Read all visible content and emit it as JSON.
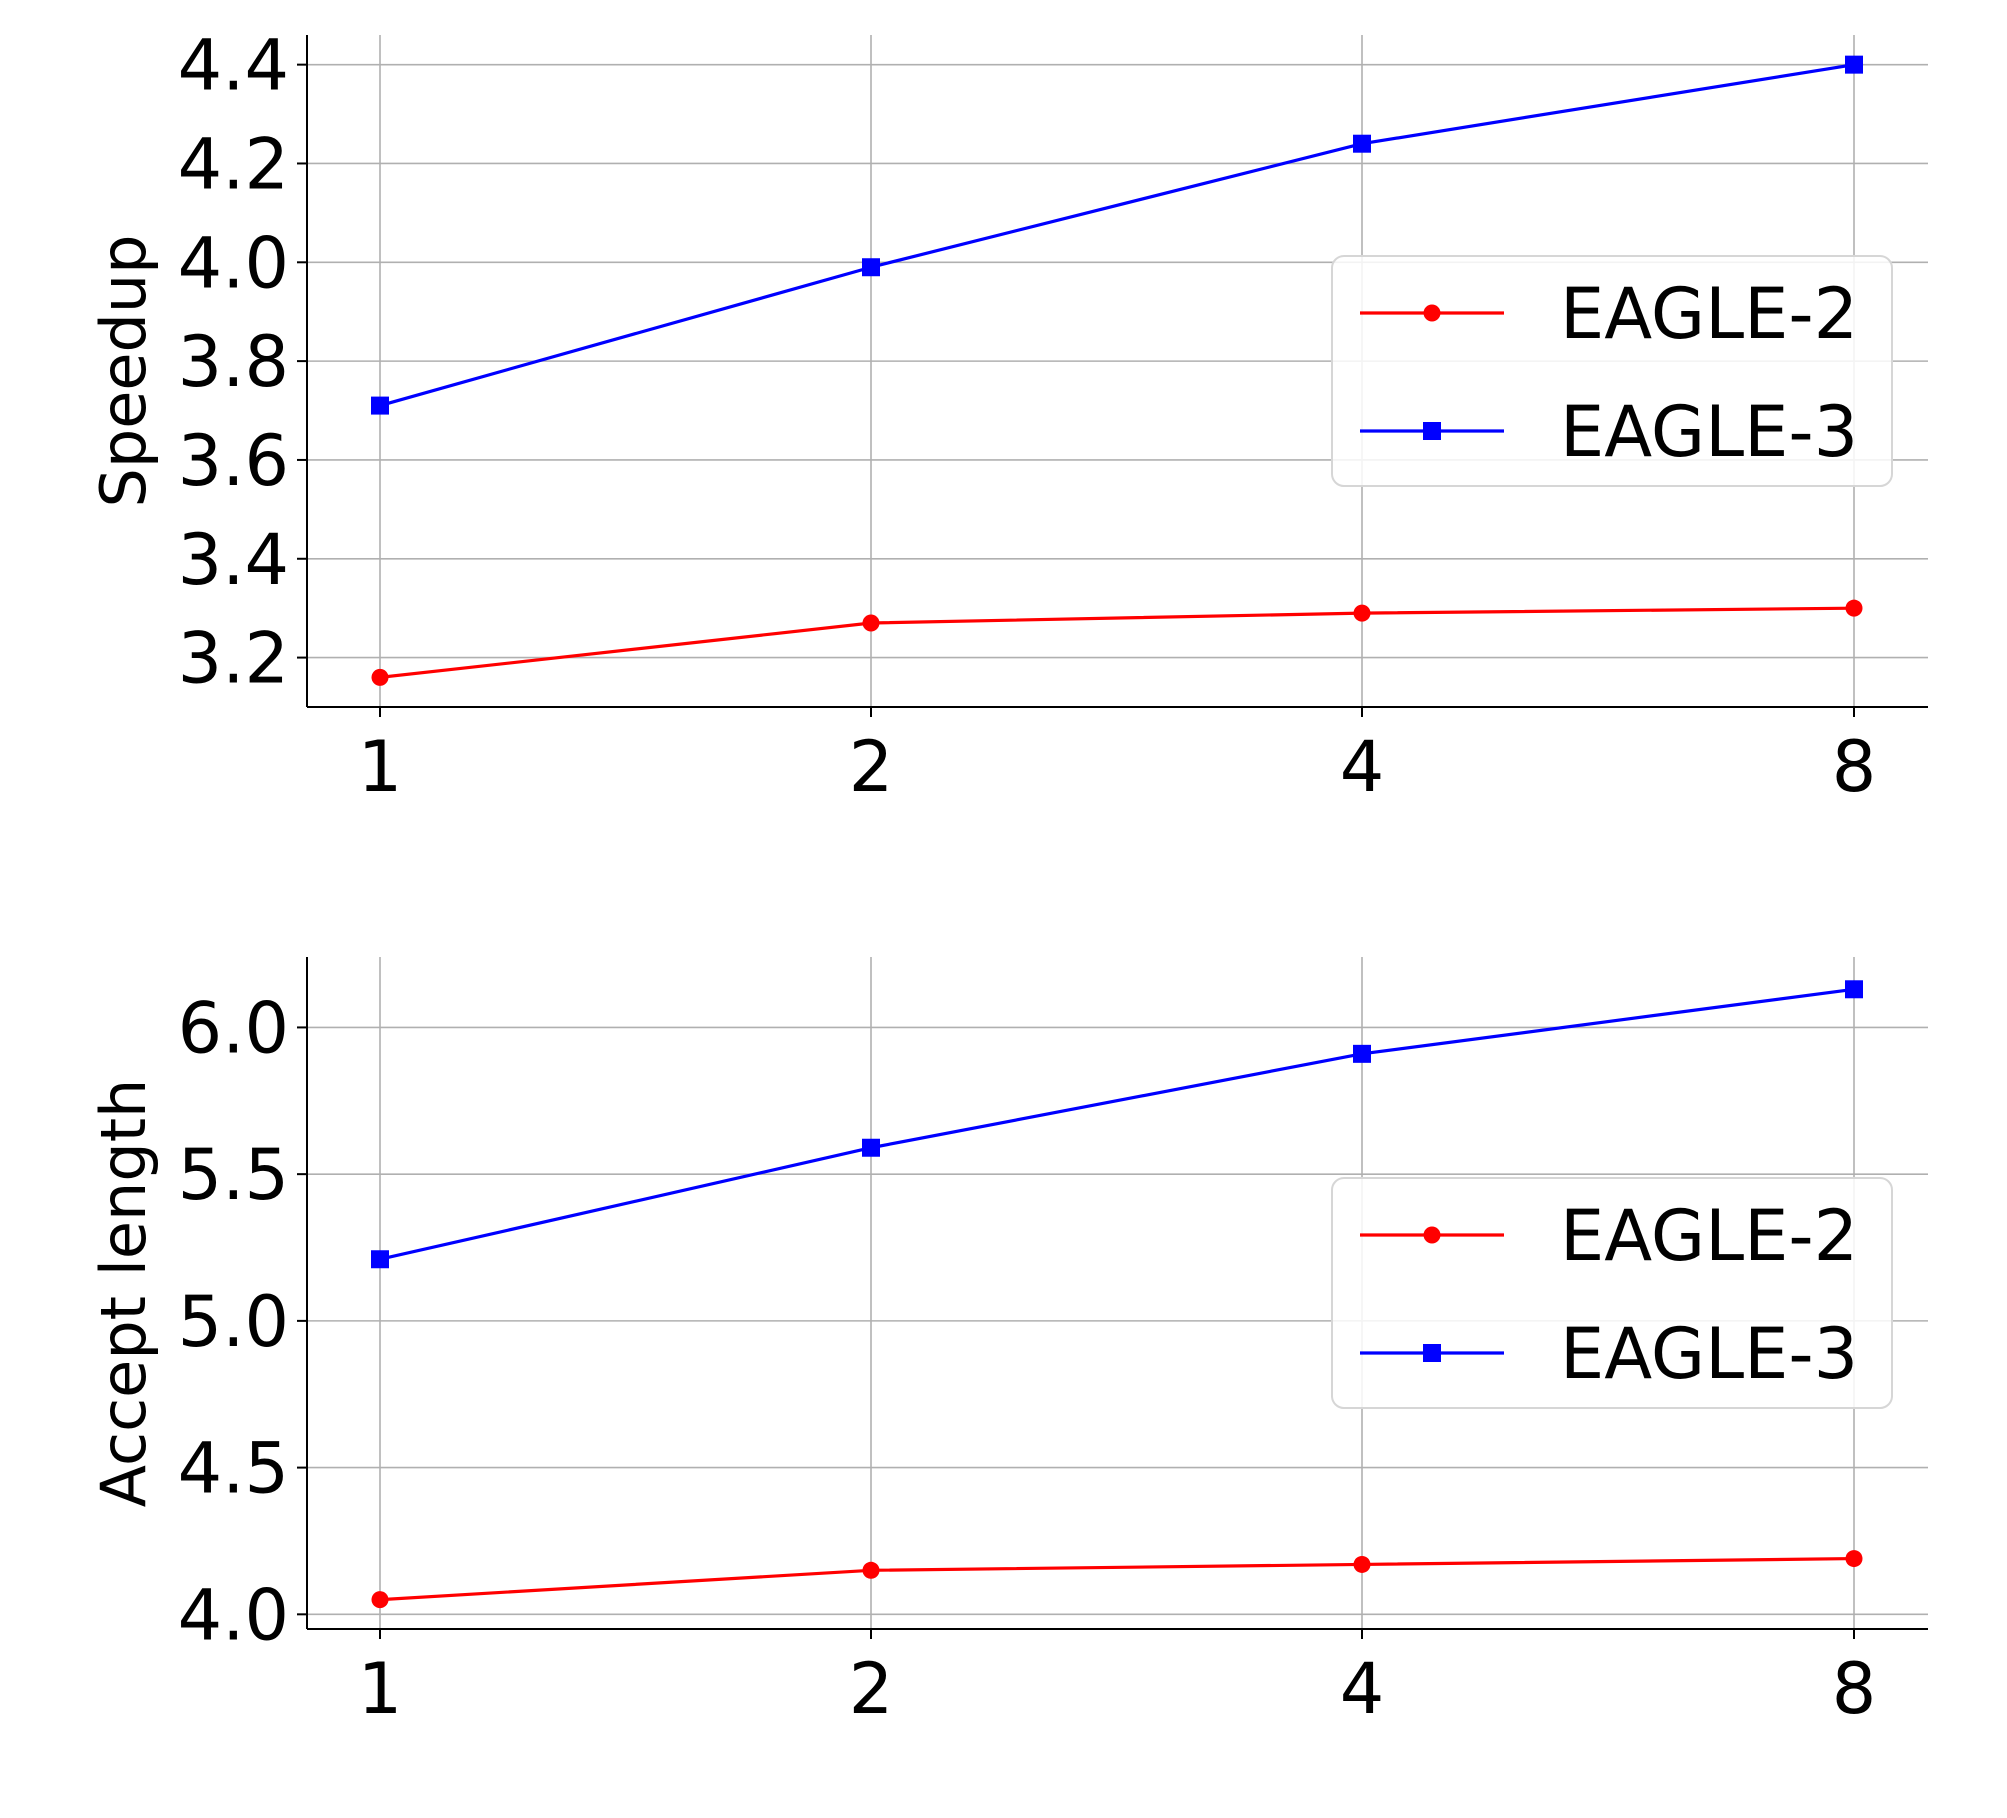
{
  "chart_data": [
    {
      "type": "line",
      "title": "",
      "xlabel": "",
      "ylabel": "Speedup",
      "x": [
        1,
        2,
        4,
        8
      ],
      "x_tick_labels": [
        "1",
        "2",
        "4",
        "8"
      ],
      "y_ticks": [
        3.2,
        3.4,
        3.6,
        3.8,
        4.0,
        4.2,
        4.4
      ],
      "y_tick_labels": [
        "3.2",
        "3.4",
        "3.6",
        "3.8",
        "4.0",
        "4.2",
        "4.4"
      ],
      "ylim": [
        3.1,
        4.46
      ],
      "grid": true,
      "legend_position": "center-right",
      "series": [
        {
          "name": "EAGLE-2",
          "color": "#ff0000",
          "marker": "circle",
          "values": [
            3.16,
            3.27,
            3.29,
            3.3
          ]
        },
        {
          "name": "EAGLE-3",
          "color": "#0000ff",
          "marker": "square",
          "values": [
            3.71,
            3.99,
            4.24,
            4.4
          ]
        }
      ]
    },
    {
      "type": "line",
      "title": "",
      "xlabel": "",
      "ylabel": "Accept length",
      "x": [
        1,
        2,
        4,
        8
      ],
      "x_tick_labels": [
        "1",
        "2",
        "4",
        "8"
      ],
      "y_ticks": [
        4.0,
        4.5,
        5.0,
        5.5,
        6.0
      ],
      "y_tick_labels": [
        "4.0",
        "4.5",
        "5.0",
        "5.5",
        "6.0"
      ],
      "ylim": [
        3.95,
        6.24
      ],
      "grid": true,
      "legend_position": "center-right",
      "series": [
        {
          "name": "EAGLE-2",
          "color": "#ff0000",
          "marker": "circle",
          "values": [
            4.05,
            4.15,
            4.17,
            4.19
          ]
        },
        {
          "name": "EAGLE-3",
          "color": "#0000ff",
          "marker": "square",
          "values": [
            5.21,
            5.59,
            5.91,
            6.13
          ]
        }
      ]
    }
  ]
}
